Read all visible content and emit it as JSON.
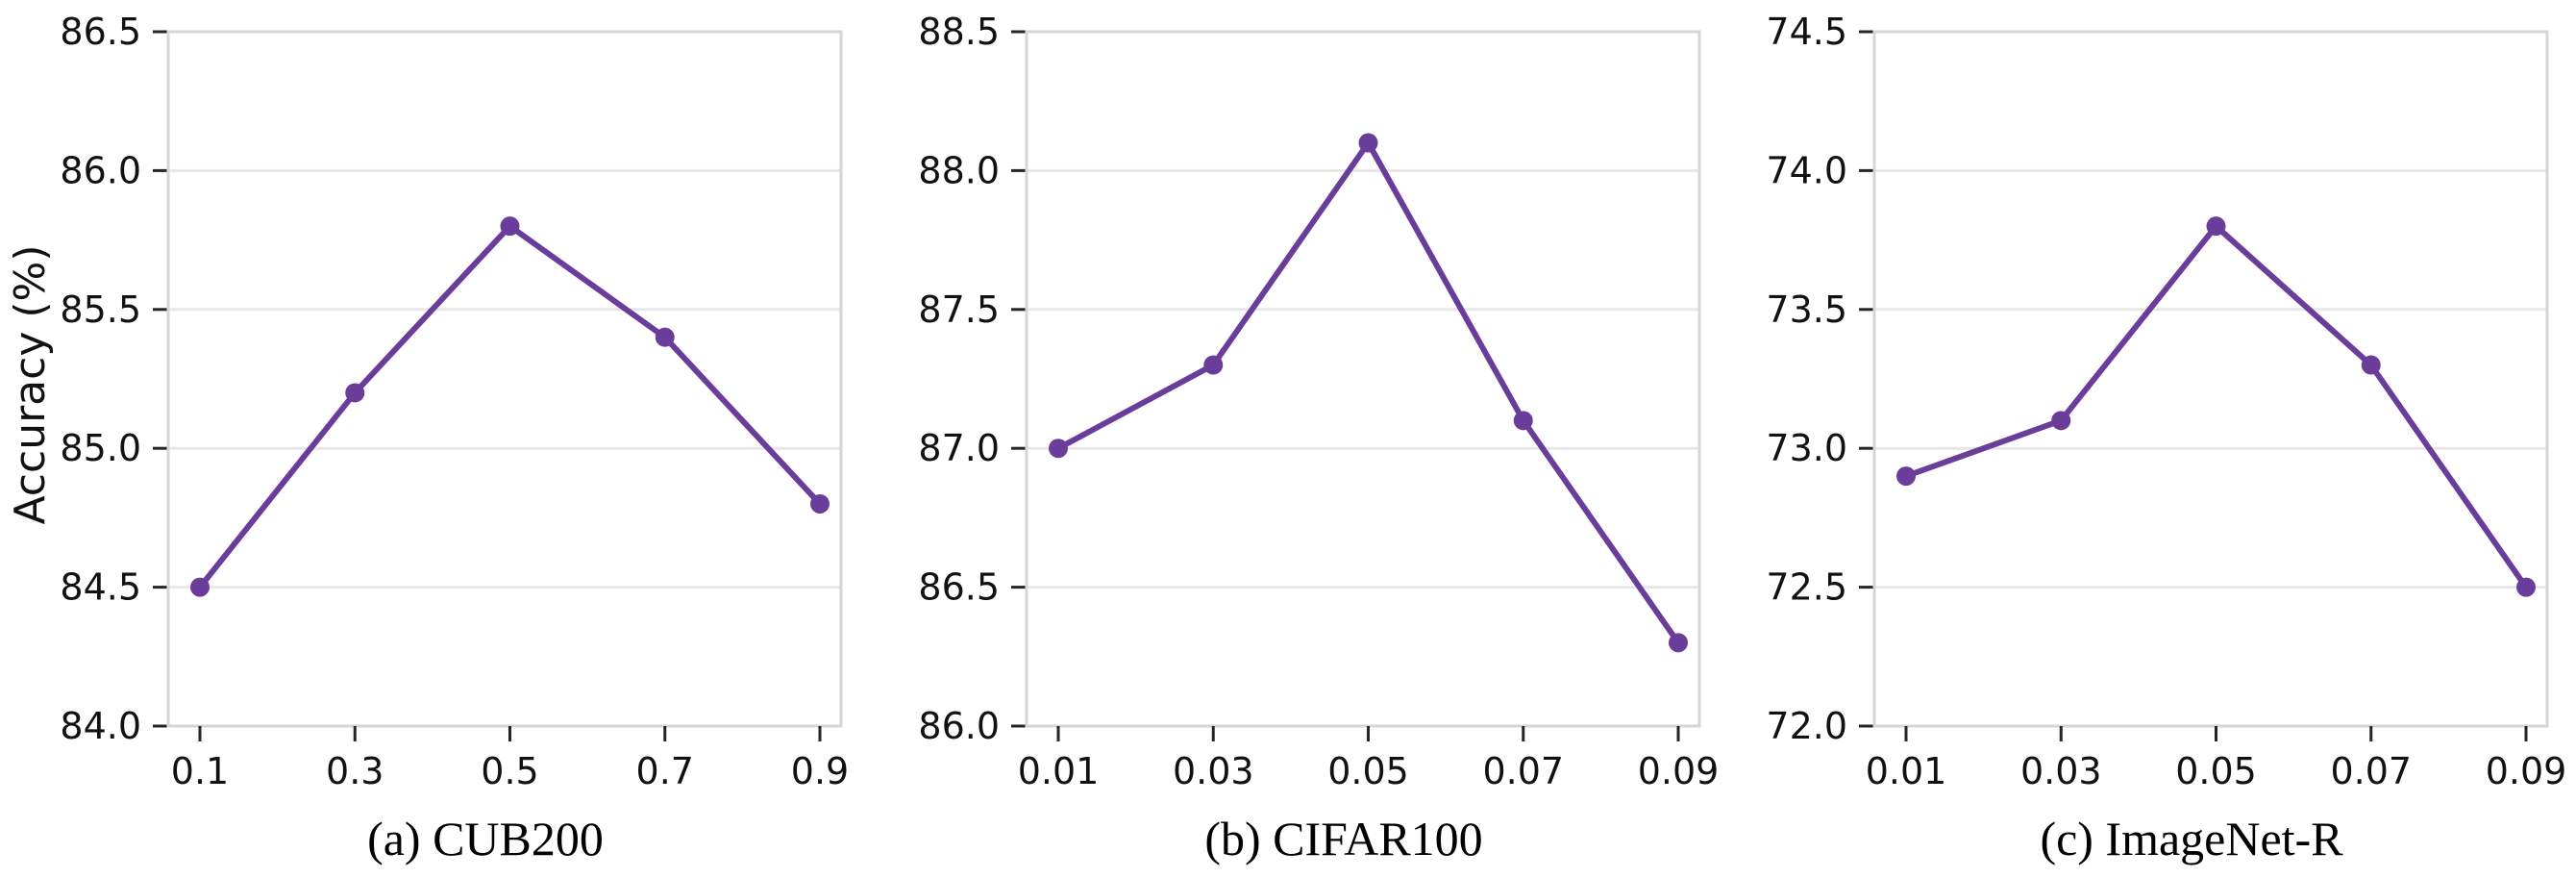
{
  "figure": {
    "ylabel": "Accuracy (%)",
    "accent_color": "#6a3d9a",
    "grid_color": "#e7e7e7",
    "spine_color": "#d6d6d6",
    "tick_color": "#262626",
    "text_color": "#111111"
  },
  "chart_data": [
    {
      "type": "line",
      "caption": "(a) CUB200",
      "title": "",
      "xlabel": "",
      "ylabel": "Accuracy (%)",
      "categories": [
        "0.1",
        "0.3",
        "0.5",
        "0.7",
        "0.9"
      ],
      "values": [
        84.5,
        85.2,
        85.8,
        85.4,
        84.8
      ],
      "ylim": [
        84.0,
        86.5
      ],
      "yticks": [
        "84.0",
        "84.5",
        "85.0",
        "85.5",
        "86.0",
        "86.5"
      ],
      "grid": "horizontal",
      "legend": "none",
      "line_color": "#6a3d9a",
      "marker": "circle"
    },
    {
      "type": "line",
      "caption": "(b) CIFAR100",
      "title": "",
      "xlabel": "",
      "ylabel": "",
      "categories": [
        "0.01",
        "0.03",
        "0.05",
        "0.07",
        "0.09"
      ],
      "values": [
        87.0,
        87.3,
        88.1,
        87.1,
        86.3
      ],
      "ylim": [
        86.0,
        88.5
      ],
      "yticks": [
        "86.0",
        "86.5",
        "87.0",
        "87.5",
        "88.0",
        "88.5"
      ],
      "grid": "horizontal",
      "legend": "none",
      "line_color": "#6a3d9a",
      "marker": "circle"
    },
    {
      "type": "line",
      "caption": "(c) ImageNet-R",
      "title": "",
      "xlabel": "",
      "ylabel": "",
      "categories": [
        "0.01",
        "0.03",
        "0.05",
        "0.07",
        "0.09"
      ],
      "values": [
        72.9,
        73.1,
        73.8,
        73.3,
        72.5
      ],
      "ylim": [
        72.0,
        74.5
      ],
      "yticks": [
        "72.0",
        "72.5",
        "73.0",
        "73.5",
        "74.0",
        "74.5"
      ],
      "grid": "horizontal",
      "legend": "none",
      "line_color": "#6a3d9a",
      "marker": "circle"
    }
  ]
}
